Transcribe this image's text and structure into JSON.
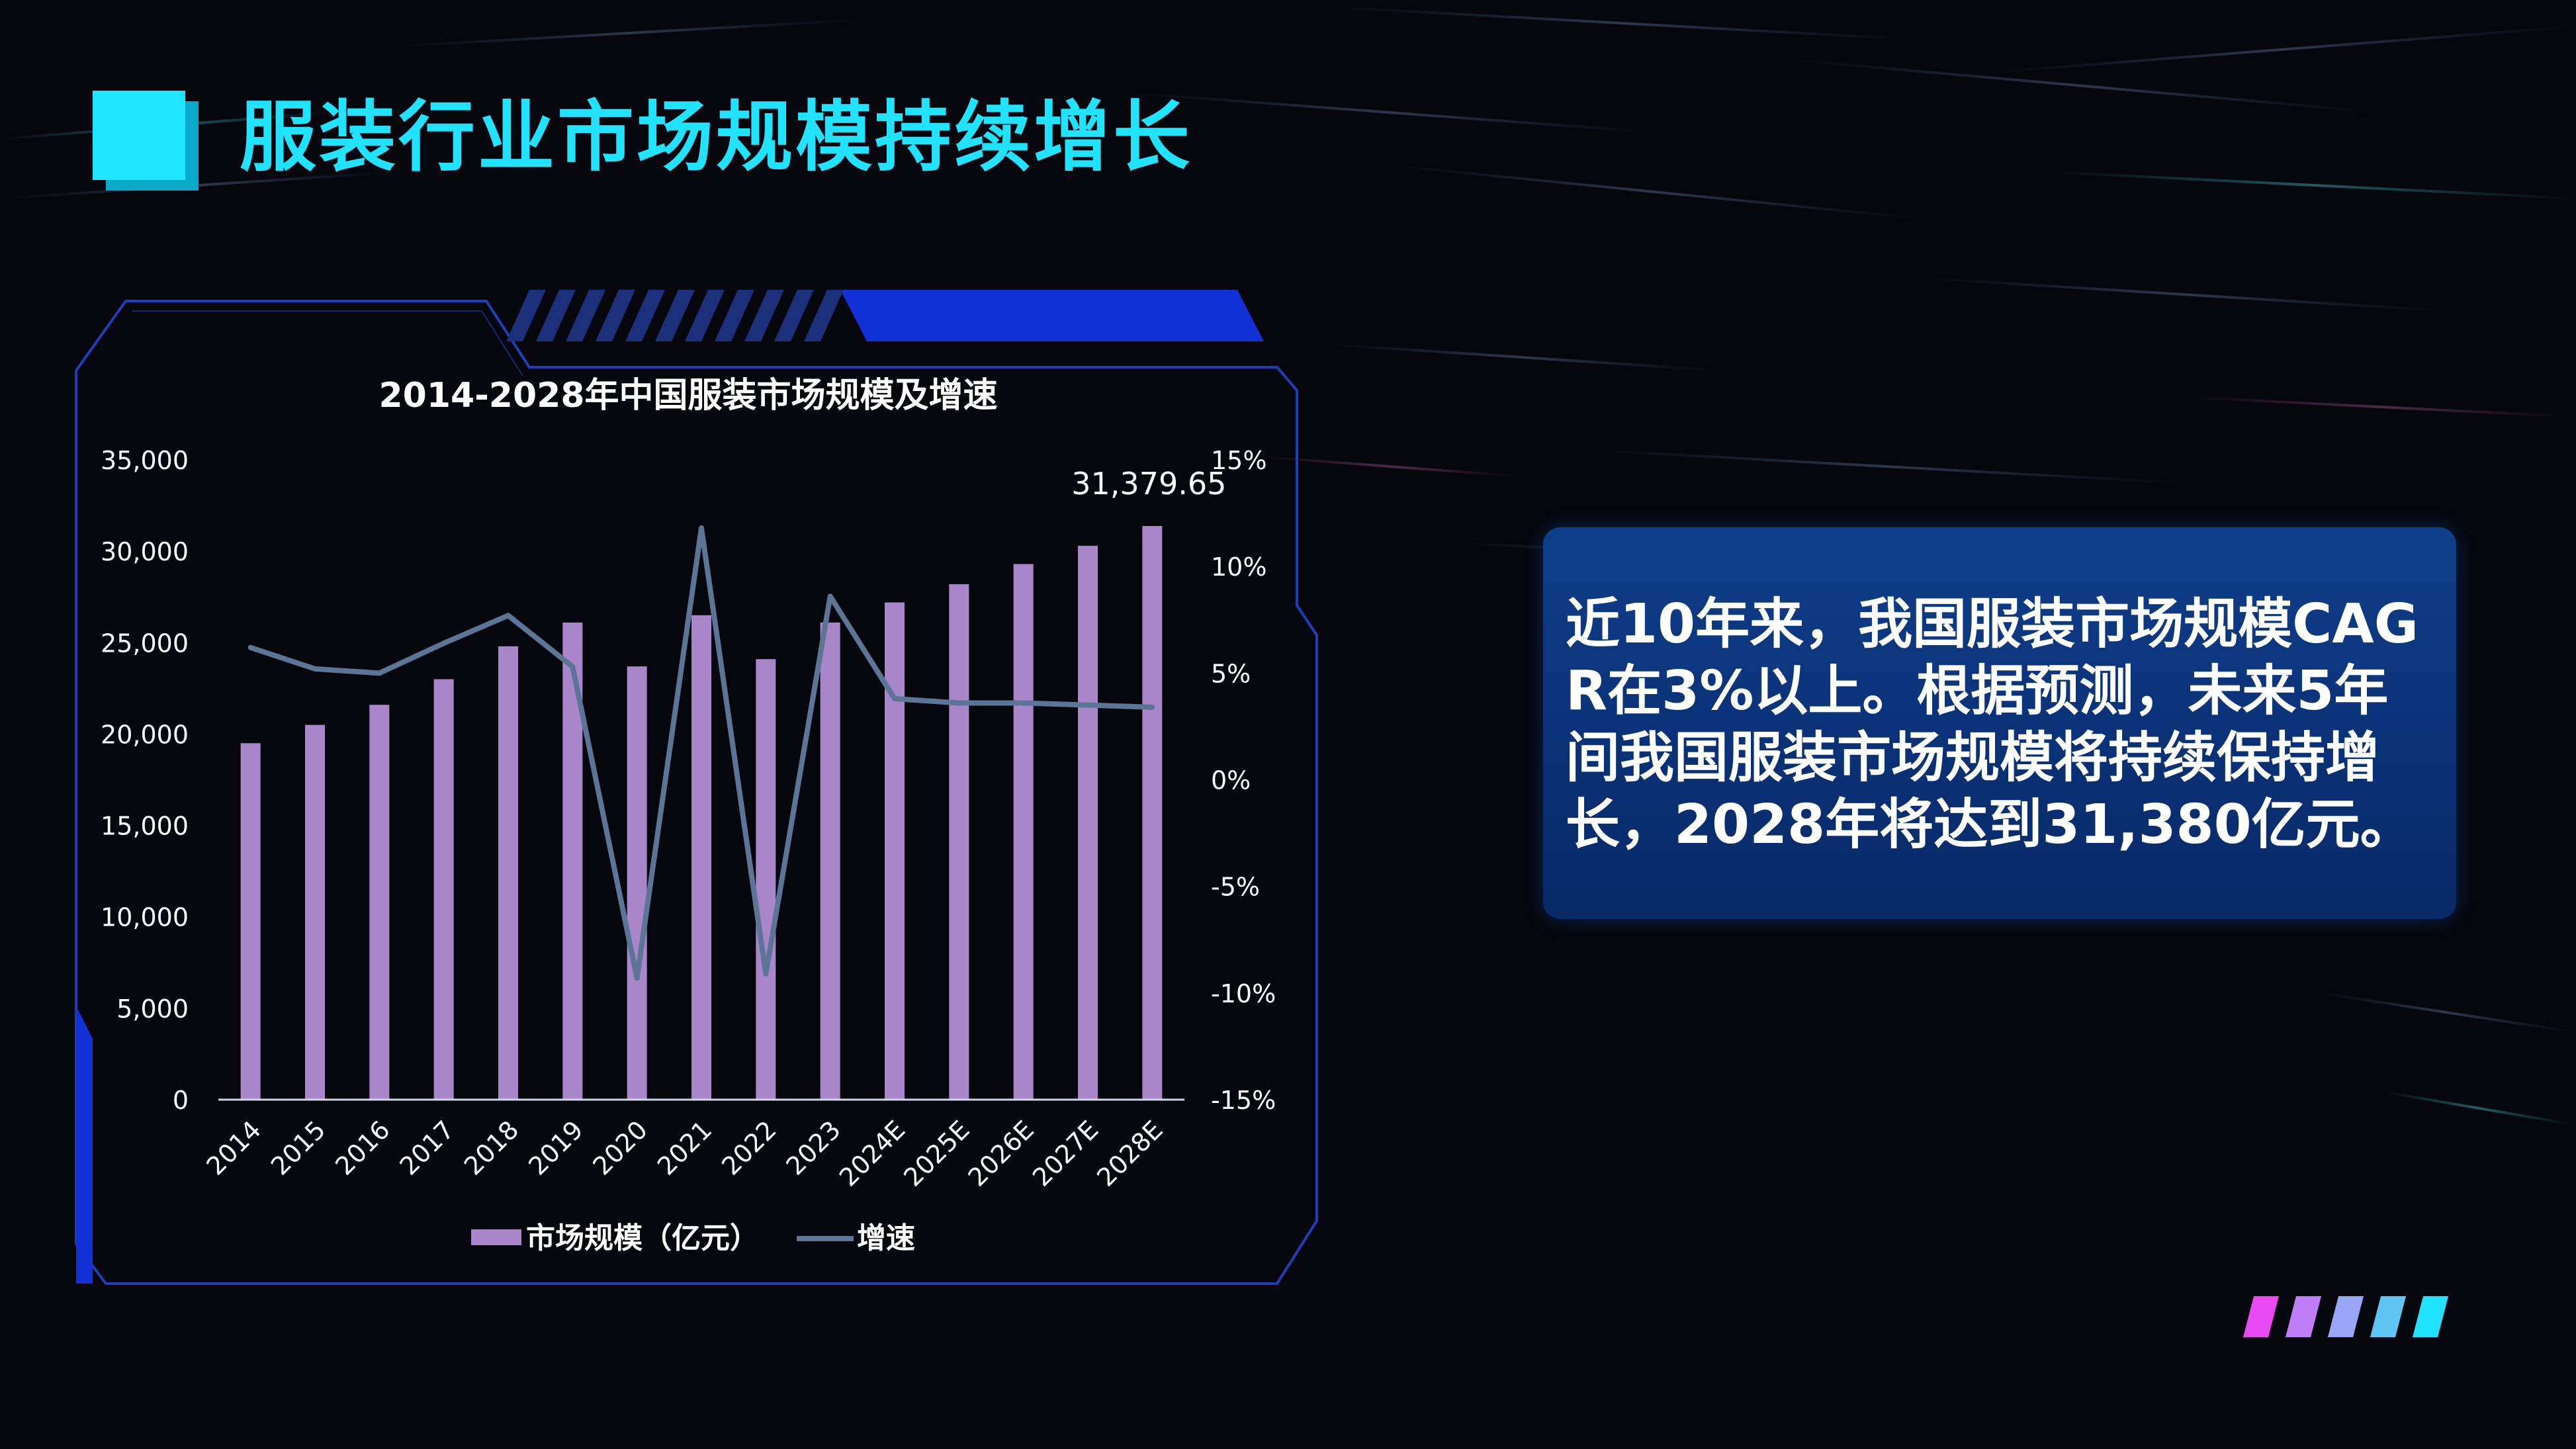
{
  "page": {
    "title": "服装行业市场规模持续增长"
  },
  "info": {
    "text": "近10年来，我国服装市场规模CAGR在3%以上。根据预测，未来5年间我国服装市场规模将持续保持增长，2028年将达到31,380亿元。"
  },
  "chart_data": {
    "type": "bar",
    "title": "2014-2028年中国服装市场规模及增速",
    "categories": [
      "2014",
      "2015",
      "2016",
      "2017",
      "2018",
      "2019",
      "2020",
      "2021",
      "2022",
      "2023",
      "2024E",
      "2025E",
      "2026E",
      "2027E",
      "2028E"
    ],
    "series": [
      {
        "name": "市场规模（亿元）",
        "type": "bar",
        "axis": "left",
        "color": "#a986c9",
        "values": [
          19500,
          20500,
          21600,
          23000,
          24800,
          26100,
          23700,
          26500,
          24100,
          26100,
          27200,
          28200,
          29300,
          30300,
          31379.65
        ]
      },
      {
        "name": "增速",
        "type": "line",
        "axis": "right",
        "color": "#5c7596",
        "values": [
          6.2,
          5.2,
          5.0,
          6.4,
          7.7,
          5.3,
          -9.3,
          11.8,
          -9.1,
          8.6,
          3.8,
          3.6,
          3.6,
          3.5,
          3.4
        ]
      }
    ],
    "ylim": [
      0,
      35000
    ],
    "yticks": [
      "0",
      "5,000",
      "10,000",
      "15,000",
      "20,000",
      "25,000",
      "30,000",
      "35,000"
    ],
    "y2lim": [
      -15,
      15
    ],
    "y2ticks": [
      "-15%",
      "-10%",
      "-5%",
      "0%",
      "5%",
      "10%",
      "15%"
    ],
    "annotation": {
      "index": 14,
      "label": "31,379.65"
    },
    "legend_position": "bottom",
    "grid": false
  },
  "colors": {
    "accent": "#22e3ff",
    "panel_border": "#1f3fb8",
    "panel_accent": "#1130d6",
    "info_bg": "#0d3a82"
  },
  "decor": {
    "stripe_colors": [
      "#e84bf2",
      "#bf7df7",
      "#9aa6f8",
      "#5fc6f4",
      "#22e3ff"
    ]
  }
}
